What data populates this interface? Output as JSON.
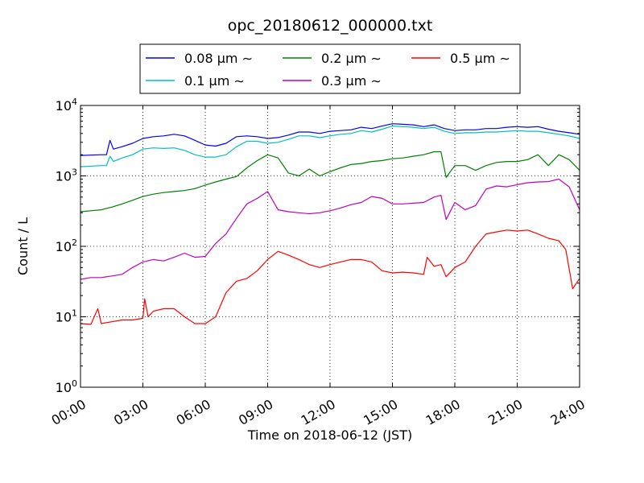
{
  "chart_data": {
    "type": "line",
    "title": "opc_20180612_000000.txt",
    "xlabel": "Time on 2018-06-12 (JST)",
    "ylabel": "Count / L",
    "yscale": "log",
    "ylim": [
      1,
      10000
    ],
    "xlim": [
      "00:00",
      "24:00"
    ],
    "x_ticks": [
      "00:00",
      "03:00",
      "06:00",
      "09:00",
      "12:00",
      "15:00",
      "18:00",
      "21:00",
      "24:00"
    ],
    "y_ticks": [
      {
        "value": 1,
        "base": "10",
        "exp": "0"
      },
      {
        "value": 10,
        "base": "10",
        "exp": "1"
      },
      {
        "value": 100,
        "base": "10",
        "exp": "2"
      },
      {
        "value": 1000,
        "base": "10",
        "exp": "3"
      },
      {
        "value": 10000,
        "base": "10",
        "exp": "4"
      }
    ],
    "grid": true,
    "legend_position": "top-center",
    "series": [
      {
        "name": "0.08 μm ∼",
        "color": "#0000ff",
        "x": [
          "00:00",
          "01:00",
          "01:15",
          "01:25",
          "01:35",
          "02:00",
          "02:30",
          "03:00",
          "03:30",
          "04:00",
          "04:30",
          "05:00",
          "05:30",
          "06:00",
          "06:30",
          "07:00",
          "07:30",
          "08:00",
          "08:30",
          "09:00",
          "09:30",
          "10:00",
          "10:30",
          "11:00",
          "11:30",
          "12:00",
          "12:30",
          "13:00",
          "13:30",
          "14:00",
          "14:30",
          "15:00",
          "15:30",
          "16:00",
          "16:30",
          "17:00",
          "17:30",
          "18:00",
          "18:30",
          "19:00",
          "19:30",
          "20:00",
          "20:30",
          "21:00",
          "21:30",
          "22:00",
          "22:30",
          "23:00",
          "23:30",
          "24:00"
        ],
        "values": [
          1950,
          2000,
          2000,
          3200,
          2400,
          2600,
          2900,
          3400,
          3600,
          3700,
          3900,
          3700,
          3200,
          2750,
          2650,
          2900,
          3600,
          3700,
          3600,
          3400,
          3500,
          3800,
          4200,
          4200,
          4000,
          4300,
          4400,
          4500,
          4900,
          4700,
          5100,
          5500,
          5400,
          5300,
          5000,
          5300,
          4700,
          4400,
          4500,
          4500,
          4700,
          4700,
          4900,
          5000,
          4900,
          5000,
          4600,
          4300,
          4100,
          3900
        ]
      },
      {
        "name": "0.1 μm ∼",
        "color": "#00bfbf",
        "x": [
          "00:00",
          "01:00",
          "01:15",
          "01:25",
          "01:35",
          "02:00",
          "02:30",
          "03:00",
          "03:30",
          "04:00",
          "04:30",
          "05:00",
          "05:30",
          "06:00",
          "06:30",
          "07:00",
          "07:30",
          "08:00",
          "08:30",
          "09:00",
          "09:30",
          "10:00",
          "10:30",
          "11:00",
          "11:30",
          "12:00",
          "12:30",
          "13:00",
          "13:30",
          "14:00",
          "14:30",
          "15:00",
          "15:30",
          "16:00",
          "16:30",
          "17:00",
          "17:30",
          "18:00",
          "18:30",
          "19:00",
          "19:30",
          "20:00",
          "20:30",
          "21:00",
          "21:30",
          "22:00",
          "22:30",
          "23:00",
          "23:30",
          "24:00"
        ],
        "values": [
          1350,
          1400,
          1400,
          1900,
          1600,
          1800,
          2000,
          2400,
          2500,
          2450,
          2500,
          2300,
          2000,
          1850,
          1850,
          2000,
          2600,
          3100,
          3100,
          2900,
          3000,
          3300,
          3700,
          3700,
          3500,
          3700,
          3900,
          4000,
          4400,
          4200,
          4600,
          5100,
          5000,
          4900,
          4700,
          4900,
          4300,
          4000,
          4100,
          4100,
          4200,
          4200,
          4300,
          4400,
          4300,
          4300,
          4100,
          3900,
          3700,
          3400
        ]
      },
      {
        "name": "0.2 μm ∼",
        "color": "#008000",
        "x": [
          "00:00",
          "00:30",
          "01:00",
          "01:30",
          "02:00",
          "02:30",
          "03:00",
          "03:30",
          "04:00",
          "04:30",
          "05:00",
          "05:30",
          "06:00",
          "06:30",
          "07:00",
          "07:30",
          "08:00",
          "08:30",
          "09:00",
          "09:30",
          "10:00",
          "10:30",
          "11:00",
          "11:30",
          "12:00",
          "12:30",
          "13:00",
          "13:30",
          "14:00",
          "14:30",
          "15:00",
          "15:30",
          "16:00",
          "16:30",
          "17:00",
          "17:20",
          "17:35",
          "18:00",
          "18:30",
          "19:00",
          "19:30",
          "20:00",
          "20:30",
          "21:00",
          "21:30",
          "22:00",
          "22:30",
          "23:00",
          "23:30",
          "24:00"
        ],
        "values": [
          310,
          320,
          330,
          360,
          400,
          450,
          510,
          550,
          580,
          600,
          620,
          660,
          740,
          820,
          900,
          980,
          1300,
          1650,
          2000,
          1800,
          1100,
          1000,
          1250,
          1000,
          1150,
          1300,
          1450,
          1500,
          1600,
          1650,
          1750,
          1800,
          1900,
          2000,
          2200,
          2200,
          950,
          1400,
          1400,
          1200,
          1400,
          1550,
          1600,
          1600,
          1700,
          2000,
          1400,
          2000,
          1700,
          1200
        ]
      },
      {
        "name": "0.3 μm ∼",
        "color": "#bf00bf",
        "x": [
          "00:00",
          "00:30",
          "01:00",
          "01:30",
          "02:00",
          "02:30",
          "03:00",
          "03:30",
          "04:00",
          "04:30",
          "05:00",
          "05:30",
          "06:00",
          "06:30",
          "07:00",
          "07:30",
          "08:00",
          "08:30",
          "09:00",
          "09:30",
          "10:00",
          "10:30",
          "11:00",
          "11:30",
          "12:00",
          "12:30",
          "13:00",
          "13:30",
          "14:00",
          "14:30",
          "15:00",
          "15:30",
          "16:00",
          "16:30",
          "17:00",
          "17:20",
          "17:35",
          "18:00",
          "18:30",
          "19:00",
          "19:30",
          "20:00",
          "20:30",
          "21:00",
          "21:30",
          "22:00",
          "22:30",
          "23:00",
          "23:30",
          "24:00"
        ],
        "values": [
          34,
          36,
          36,
          38,
          40,
          50,
          60,
          65,
          62,
          70,
          80,
          70,
          72,
          110,
          150,
          250,
          400,
          480,
          600,
          330,
          310,
          300,
          290,
          300,
          320,
          350,
          390,
          420,
          510,
          480,
          400,
          400,
          410,
          420,
          500,
          530,
          240,
          420,
          330,
          380,
          650,
          720,
          700,
          750,
          800,
          820,
          830,
          900,
          700,
          330
        ]
      },
      {
        "name": "0.5 μm ∼",
        "color": "#ff0000",
        "x": [
          "00:00",
          "00:30",
          "00:50",
          "01:00",
          "01:30",
          "02:00",
          "02:30",
          "03:00",
          "03:05",
          "03:15",
          "03:30",
          "04:00",
          "04:30",
          "05:00",
          "05:30",
          "06:00",
          "06:30",
          "07:00",
          "07:30",
          "08:00",
          "08:30",
          "09:00",
          "09:30",
          "10:00",
          "10:30",
          "11:00",
          "11:30",
          "12:00",
          "12:30",
          "13:00",
          "13:30",
          "14:00",
          "14:30",
          "15:00",
          "15:30",
          "16:00",
          "16:30",
          "16:40",
          "17:00",
          "17:20",
          "17:35",
          "18:00",
          "18:30",
          "19:00",
          "19:30",
          "20:00",
          "20:30",
          "21:00",
          "21:30",
          "22:00",
          "22:30",
          "23:00",
          "23:20",
          "23:40",
          "24:00"
        ],
        "values": [
          8,
          7.8,
          13,
          8,
          8.5,
          9,
          9,
          9.5,
          18,
          10,
          12,
          13,
          13,
          10,
          8,
          8,
          10,
          22,
          32,
          35,
          45,
          65,
          85,
          75,
          65,
          55,
          50,
          55,
          60,
          65,
          65,
          60,
          45,
          42,
          43,
          42,
          40,
          70,
          52,
          55,
          37,
          50,
          60,
          100,
          150,
          160,
          170,
          165,
          170,
          150,
          130,
          120,
          90,
          25,
          35
        ]
      }
    ]
  }
}
